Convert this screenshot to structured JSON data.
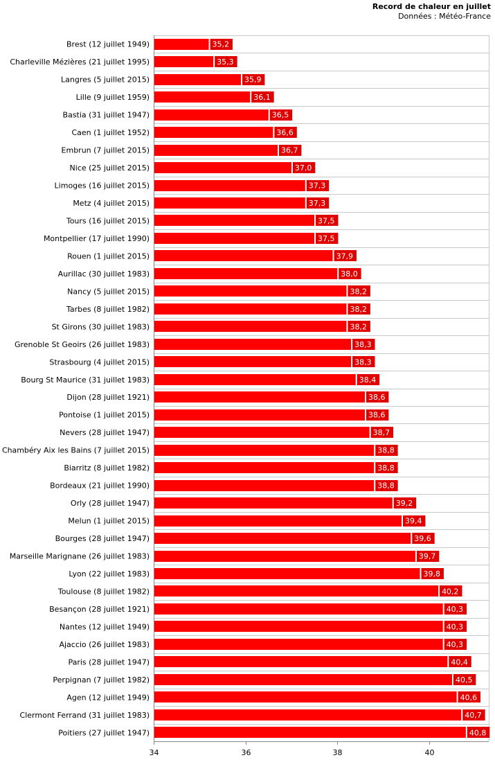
{
  "chart_data": {
    "type": "bar",
    "orientation": "horizontal",
    "title": "Record de chaleur en juillet",
    "subtitle": "Données : Météo-France",
    "xlabel": "",
    "ylabel": "",
    "xlim": [
      34,
      41.3
    ],
    "xticks": [
      34,
      36,
      38,
      40
    ],
    "grid": true,
    "colors": {
      "bar": "#ff0000",
      "label_bg": "#e00000",
      "grid": "#c8c8c8",
      "axis": "#888888"
    },
    "categories": [
      "Brest (12 juillet 1949)",
      "Charleville Mézières (21 juillet 1995)",
      "Langres (5 juillet 2015)",
      "Lille (9 juillet 1959)",
      "Bastia (31 juillet 1947)",
      "Caen (1 juillet 1952)",
      "Embrun (7 juillet 2015)",
      "Nice (25 juillet 2015)",
      "Limoges (16 juillet 2015)",
      "Metz (4 juillet 2015)",
      "Tours (16 juillet 2015)",
      "Montpellier (17 juillet 1990)",
      "Rouen (1 juillet 2015)",
      "Aurillac (30 juillet 1983)",
      "Nancy (5 juillet 2015)",
      "Tarbes (8 juillet 1982)",
      "St Girons (30 juillet 1983)",
      "Grenoble St Geoirs (26 juillet 1983)",
      "Strasbourg (4 juillet 2015)",
      "Bourg St Maurice (31 juillet 1983)",
      "Dijon (28 juillet 1921)",
      "Pontoise (1 juillet 2015)",
      "Nevers (28 juillet 1947)",
      "Chambéry Aix les Bains (7 juillet 2015)",
      "Biarritz (8 juillet 1982)",
      "Bordeaux (21 juillet 1990)",
      "Orly (28 juillet 1947)",
      "Melun (1 juillet 2015)",
      "Bourges (28 juillet 1947)",
      "Marseille Marignane (26 juillet 1983)",
      "Lyon (22 juillet 1983)",
      "Toulouse (8 juillet 1982)",
      "Besançon (28 juillet 1921)",
      "Nantes (12 juillet 1949)",
      "Ajaccio (26 juillet 1983)",
      "Paris (28 juillet 1947)",
      "Perpignan (7 juillet 1982)",
      "Agen (12 juillet 1949)",
      "Clermont Ferrand (31 juillet 1983)",
      "Poitiers (27 juillet 1947)"
    ],
    "values": [
      35.2,
      35.3,
      35.9,
      36.1,
      36.5,
      36.6,
      36.7,
      37.0,
      37.3,
      37.3,
      37.5,
      37.5,
      37.9,
      38.0,
      38.2,
      38.2,
      38.2,
      38.3,
      38.3,
      38.4,
      38.6,
      38.6,
      38.7,
      38.8,
      38.8,
      38.8,
      39.2,
      39.4,
      39.6,
      39.7,
      39.8,
      40.2,
      40.3,
      40.3,
      40.3,
      40.4,
      40.5,
      40.6,
      40.7,
      40.8
    ],
    "value_labels": [
      "35,2",
      "35,3",
      "35,9",
      "36,1",
      "36,5",
      "36,6",
      "36,7",
      "37,0",
      "37,3",
      "37,3",
      "37,5",
      "37,5",
      "37,9",
      "38,0",
      "38,2",
      "38,2",
      "38,2",
      "38,3",
      "38,3",
      "38,4",
      "38,6",
      "38,6",
      "38,7",
      "38,8",
      "38,8",
      "38,8",
      "39,2",
      "39,4",
      "39,6",
      "39,7",
      "39,8",
      "40,2",
      "40,3",
      "40,3",
      "40,3",
      "40,4",
      "40,5",
      "40,6",
      "40,7",
      "40,8"
    ]
  }
}
